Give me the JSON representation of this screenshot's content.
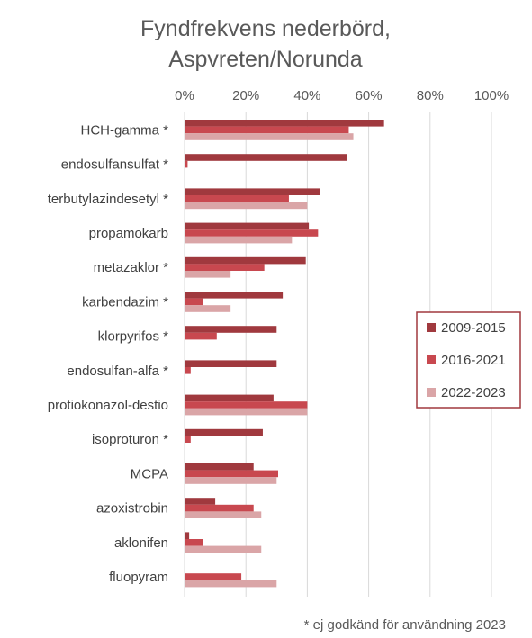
{
  "chart_data": {
    "type": "bar",
    "orientation": "horizontal",
    "title_lines": [
      "Fyndfrekvens nederbörd,",
      "Aspvreten/Norunda"
    ],
    "xlim": [
      0,
      100
    ],
    "xticks": [
      "0%",
      "20%",
      "40%",
      "60%",
      "80%",
      "100%"
    ],
    "xtick_values": [
      0,
      20,
      40,
      60,
      80,
      100
    ],
    "x_axis_position": "top",
    "grid": true,
    "legend_position": "right",
    "categories": [
      "HCH-gamma *",
      "endosulfansulfat *",
      "terbutylazindesetyl *",
      "propamokarb",
      "metazaklor *",
      "karbendazim *",
      "klorpyrifos *",
      "endosulfan-alfa *",
      "protiokonazol-destio",
      "isoproturon *",
      "MCPA",
      "azoxistrobin",
      "aklonifen",
      "fluopyram"
    ],
    "series": [
      {
        "name": "2009-2015",
        "color": "#a0393e",
        "values": [
          65,
          53,
          44,
          40.5,
          39.5,
          32,
          30,
          30,
          29,
          25.5,
          22.5,
          10,
          1.5,
          0
        ]
      },
      {
        "name": "2016-2021",
        "color": "#c8484f",
        "values": [
          53.5,
          1,
          34,
          43.5,
          26,
          6,
          10.5,
          2,
          40,
          2,
          30.5,
          22.5,
          6,
          18.5
        ]
      },
      {
        "name": "2022-2023",
        "color": "#daa5a7",
        "values": [
          55,
          0,
          40,
          35,
          15,
          15,
          0,
          0,
          40,
          0,
          30,
          25,
          25,
          30
        ]
      }
    ],
    "footnote": "* ej godkänd för användning 2023"
  }
}
